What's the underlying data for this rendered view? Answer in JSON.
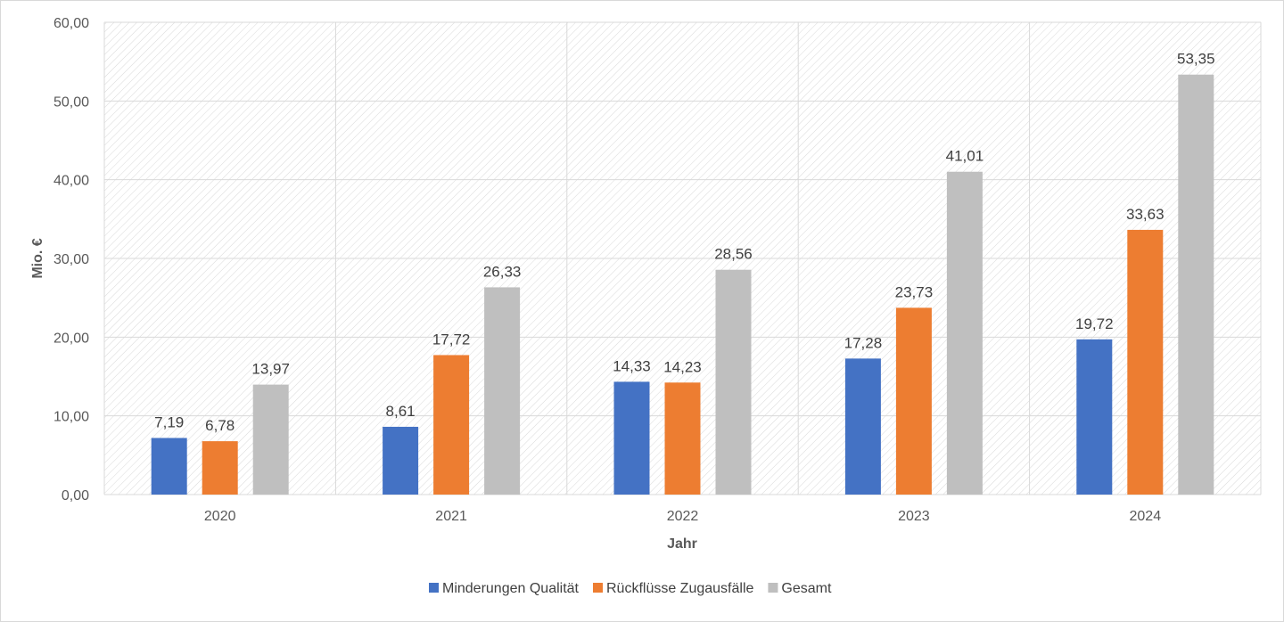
{
  "chart_data": {
    "type": "bar",
    "title": "",
    "xlabel": "Jahr",
    "ylabel": "Mio. €",
    "ylim": [
      0,
      60
    ],
    "yticks": [
      "0,00",
      "10,00",
      "20,00",
      "30,00",
      "40,00",
      "50,00",
      "60,00"
    ],
    "categories": [
      "2020",
      "2021",
      "2022",
      "2023",
      "2024"
    ],
    "series": [
      {
        "name": "Minderungen Qualität",
        "color": "#4472C4",
        "values": [
          7.19,
          8.61,
          14.33,
          17.28,
          19.72
        ],
        "labels": [
          "7,19",
          "8,61",
          "14,33",
          "17,28",
          "19,72"
        ]
      },
      {
        "name": "Rückflüsse Zugausfälle",
        "color": "#ED7D31",
        "values": [
          6.78,
          17.72,
          14.23,
          23.73,
          33.63
        ],
        "labels": [
          "6,78",
          "17,72",
          "14,23",
          "23,73",
          "33,63"
        ]
      },
      {
        "name": "Gesamt",
        "color": "#BFBFBF",
        "values": [
          13.97,
          26.33,
          28.56,
          41.01,
          53.35
        ],
        "labels": [
          "13,97",
          "26,33",
          "28,56",
          "41,01",
          "53,35"
        ]
      }
    ],
    "grid": true,
    "legend": "bottom"
  }
}
